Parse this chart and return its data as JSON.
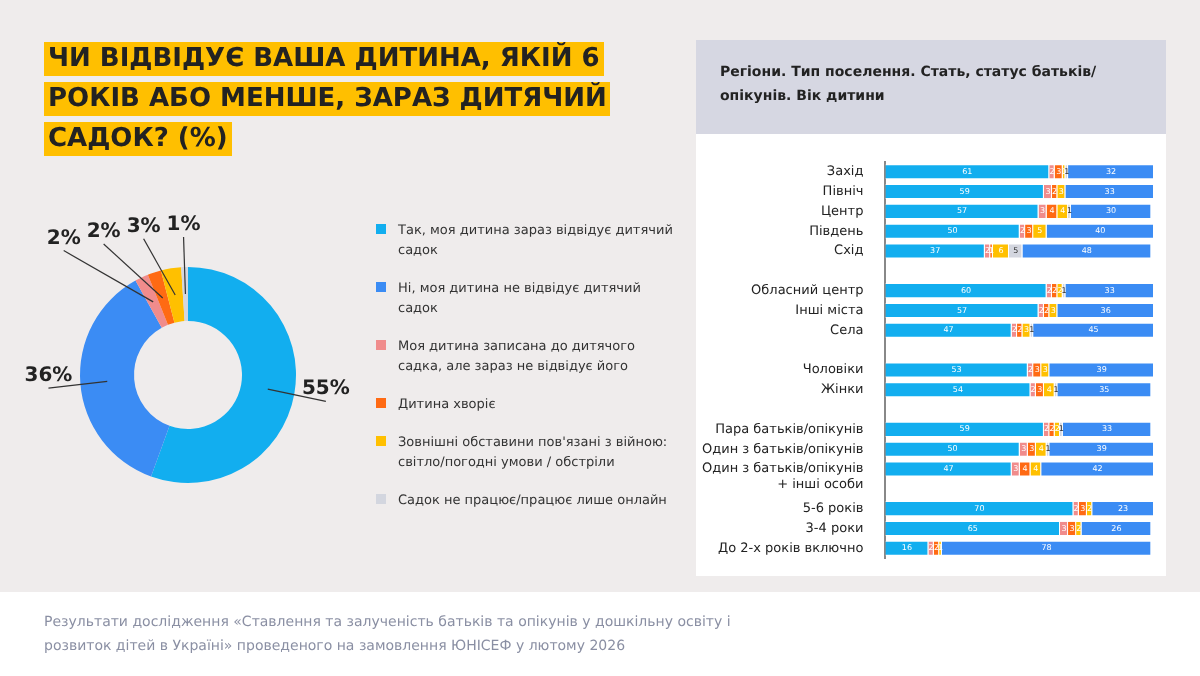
{
  "chart_data": [
    {
      "type": "donut",
      "title": "ЧИ ВІДВІДУЄ ВАША ДИТИНА, ЯКІЙ 6 РОКІВ АБО МЕНШЕ, ЗАРАЗ ДИТЯЧИЙ САДОК? (%)",
      "categories": [
        "Так, моя дитина зараз відвідує дитячий садок",
        "Ні, моя дитина не відвідує дитячий садок",
        "Моя дитина записана до дитячого садка, але зараз не відвідує його",
        "Дитина хворіє",
        "Зовнішні обставини пов'язані з війною: світло/погодні умови / обстріли",
        "Садок не працює/працює лише онлайн"
      ],
      "values": [
        55,
        36,
        2,
        2,
        3,
        1
      ],
      "value_labels": [
        "55%",
        "36%",
        "2%",
        "2%",
        "3%",
        "1%"
      ],
      "colors": [
        "#12aeef",
        "#3b8cf4",
        "#f08c8c",
        "#ff6a13",
        "#ffc000",
        "#d3d6df"
      ],
      "legend": "right",
      "annotations": [
        "Результати дослідження «Ставлення та залученість батьків та опікунів у дошкільну освіту і розвиток дітей в Україні» проведеного на замовлення ЮНІСЕФ у лютому 2026"
      ]
    },
    {
      "type": "bar",
      "orientation": "horizontal",
      "stacked": true,
      "title": "Регіони. Тип поселення. Стать, статус батьків/опікунів. Вік дитини",
      "categories": [
        "Захід",
        "Північ",
        "Центр",
        "Південь",
        "Схід",
        null,
        "Обласний центр",
        "Інші міста",
        "Села",
        null,
        "Чоловіки",
        "Жінки",
        null,
        "Пара батьків/опікунів",
        "Один з батьків/опікунів",
        "Один з батьків/опікунів + інші особи",
        null,
        "5-6 років",
        "3-4 роки",
        "До 2-х років включно"
      ],
      "series": [
        {
          "color": "#12aeef",
          "values": [
            61,
            59,
            57,
            50,
            37,
            null,
            60,
            57,
            47,
            null,
            53,
            54,
            null,
            59,
            50,
            47,
            null,
            70,
            65,
            16
          ]
        },
        {
          "color": "#f08c8c",
          "values": [
            2,
            3,
            3,
            2,
            2,
            null,
            2,
            2,
            2,
            null,
            2,
            2,
            null,
            2,
            3,
            3,
            null,
            2,
            3,
            2
          ]
        },
        {
          "color": "#ff6a13",
          "values": [
            3,
            2,
            4,
            3,
            1,
            null,
            2,
            2,
            2,
            null,
            3,
            3,
            null,
            2,
            3,
            4,
            null,
            3,
            3,
            2
          ]
        },
        {
          "color": "#ffc000",
          "values": [
            1,
            3,
            4,
            5,
            6,
            null,
            2,
            3,
            3,
            null,
            3,
            4,
            null,
            2,
            4,
            4,
            null,
            2,
            2,
            1
          ]
        },
        {
          "color": "#d3d6df",
          "values": [
            1,
            null,
            1,
            null,
            5,
            null,
            1,
            null,
            1,
            null,
            null,
            1,
            null,
            1,
            1,
            null,
            null,
            null,
            null,
            null
          ]
        },
        {
          "color": "#3b8cf4",
          "values": [
            32,
            33,
            30,
            40,
            48,
            null,
            33,
            36,
            45,
            null,
            39,
            35,
            null,
            33,
            39,
            42,
            null,
            23,
            26,
            78
          ]
        }
      ],
      "xlim": [
        0,
        100
      ],
      "tick_labels": "y",
      "data_labels": true
    }
  ]
}
